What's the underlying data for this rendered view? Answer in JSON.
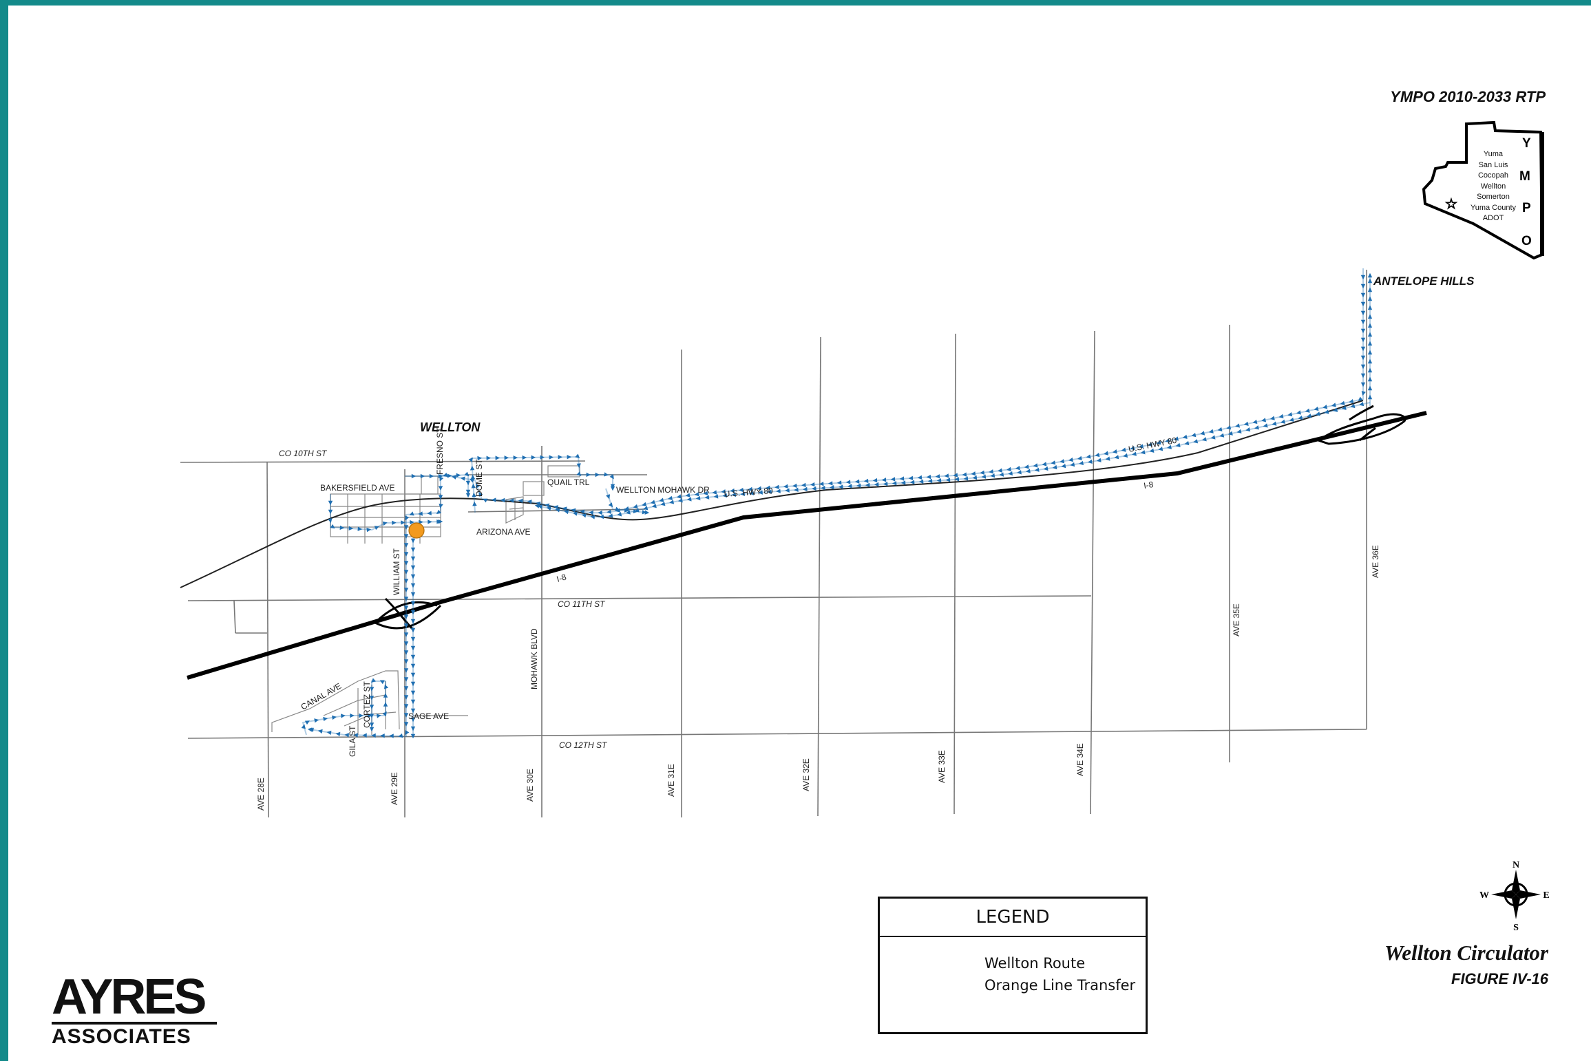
{
  "header": {
    "plan_title": "YMPO 2010-2033 RTP"
  },
  "ympo_inset": {
    "letters": [
      "Y",
      "M",
      "P",
      "O"
    ],
    "members": [
      "Yuma",
      "San Luis",
      "Cocopah",
      "Wellton",
      "Somerton",
      "Yuma County",
      "ADOT"
    ]
  },
  "map": {
    "places": {
      "town": "WELLTON",
      "antelope": "ANTELOPE HILLS"
    },
    "streets": {
      "co10": "CO 10TH ST",
      "co11": "CO 11TH ST",
      "co12": "CO 12TH ST",
      "bakersfield": "BAKERSFIELD AVE",
      "fresno": "FRESNO ST",
      "dome": "DOME ST",
      "quail": "QUAIL TRL",
      "welltonMohawk": "WELLTON MOHAWK DR",
      "arizona": "ARIZONA AVE",
      "william": "WILLIAM ST",
      "mohawkBlvd": "MOHAWK BLVD",
      "canal": "CANAL AVE",
      "gila": "GILA ST",
      "cortez": "CORTEZ ST",
      "sage": "SAGE AVE",
      "i8a": "I-8",
      "i8b": "I-8",
      "hwy80a": "U.S. HWY 80",
      "hwy80b": "U.S. HWY 80",
      "ave28e": "AVE 28E",
      "ave29e": "AVE 29E",
      "ave30e": "AVE 30E",
      "ave31e": "AVE 31E",
      "ave32e": "AVE 32E",
      "ave33e": "AVE 33E",
      "ave34e": "AVE 34E",
      "ave35e": "AVE 35E",
      "ave36e": "AVE 36E"
    }
  },
  "legend": {
    "title": "LEGEND",
    "items": [
      {
        "label": "Wellton Route",
        "symbol": "blue-arrow-line",
        "color": "#1f6fb2"
      },
      {
        "label": "Orange Line Transfer",
        "symbol": "orange-circle",
        "color": "#f29a1e"
      }
    ]
  },
  "compass": {
    "n": "N",
    "s": "S",
    "e": "E",
    "w": "W"
  },
  "figure": {
    "title": "Wellton Circulator",
    "number": "FIGURE IV-16"
  },
  "logo": {
    "line1": "AYRES",
    "line2": "ASSOCIATES"
  }
}
